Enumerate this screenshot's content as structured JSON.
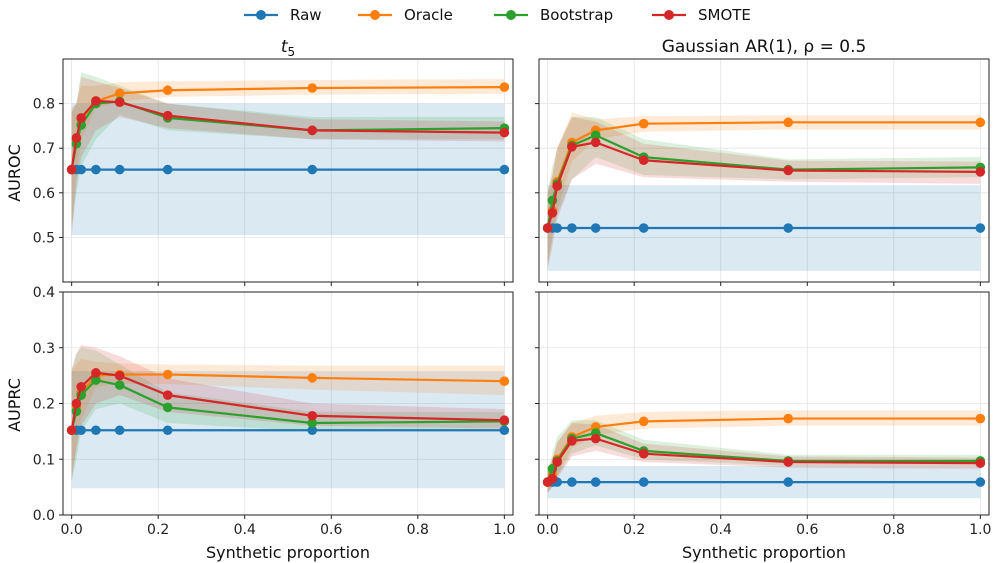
{
  "legend": [
    {
      "name": "Raw",
      "color": "#1f77b4"
    },
    {
      "name": "Oracle",
      "color": "#ff7f0e"
    },
    {
      "name": "Bootstrap",
      "color": "#2ca02c"
    },
    {
      "name": "SMOTE",
      "color": "#d62728"
    }
  ],
  "chart_data": [
    {
      "type": "line",
      "title": "t",
      "title_sub": "5",
      "xlabel": "",
      "ylabel": "AUROC",
      "xlim": [
        -0.02,
        1.02
      ],
      "ylim": [
        0.4,
        0.9
      ],
      "grid": true,
      "x": [
        0.0,
        0.011,
        0.022,
        0.056,
        0.111,
        0.222,
        0.556,
        1.0
      ],
      "xticks": [
        "0.0",
        "0.2",
        "0.4",
        "0.6",
        "0.8",
        "1.0"
      ],
      "yticks": [
        "0.5",
        "0.6",
        "0.7",
        "0.8"
      ],
      "series": [
        {
          "name": "Raw",
          "values": [
            0.652,
            0.652,
            0.652,
            0.652,
            0.652,
            0.652,
            0.652,
            0.652
          ],
          "lower": [
            0.505,
            0.505,
            0.505,
            0.505,
            0.505,
            0.505,
            0.505,
            0.505
          ],
          "upper": [
            0.8,
            0.8,
            0.8,
            0.8,
            0.8,
            0.8,
            0.8,
            0.8
          ]
        },
        {
          "name": "Oracle",
          "values": [
            0.652,
            0.72,
            0.765,
            0.805,
            0.823,
            0.83,
            0.835,
            0.837
          ],
          "lower": [
            0.52,
            0.64,
            0.72,
            0.79,
            0.805,
            0.815,
            0.82,
            0.822
          ],
          "upper": [
            0.78,
            0.8,
            0.84,
            0.84,
            0.848,
            0.85,
            0.853,
            0.855
          ]
        },
        {
          "name": "Bootstrap",
          "values": [
            0.652,
            0.71,
            0.752,
            0.8,
            0.805,
            0.768,
            0.74,
            0.745
          ],
          "lower": [
            0.52,
            0.6,
            0.66,
            0.72,
            0.775,
            0.74,
            0.72,
            0.72
          ],
          "upper": [
            0.78,
            0.8,
            0.87,
            0.86,
            0.84,
            0.8,
            0.77,
            0.77
          ]
        },
        {
          "name": "SMOTE",
          "values": [
            0.652,
            0.723,
            0.768,
            0.806,
            0.803,
            0.773,
            0.74,
            0.735
          ],
          "lower": [
            0.5,
            0.62,
            0.68,
            0.74,
            0.77,
            0.745,
            0.72,
            0.715
          ],
          "upper": [
            0.79,
            0.8,
            0.86,
            0.85,
            0.835,
            0.8,
            0.765,
            0.76
          ]
        }
      ]
    },
    {
      "type": "line",
      "title": "Gaussian AR(1), ρ = 0.5",
      "xlabel": "",
      "ylabel": "",
      "xlim": [
        -0.02,
        1.02
      ],
      "ylim": [
        0.4,
        0.9
      ],
      "grid": true,
      "x": [
        0.0,
        0.011,
        0.022,
        0.056,
        0.111,
        0.222,
        0.556,
        1.0
      ],
      "xticks": [
        "0.0",
        "0.2",
        "0.4",
        "0.6",
        "0.8",
        "1.0"
      ],
      "yticks": [
        "0.5",
        "0.6",
        "0.7",
        "0.8"
      ],
      "series": [
        {
          "name": "Raw",
          "values": [
            0.521,
            0.521,
            0.521,
            0.521,
            0.521,
            0.521,
            0.521,
            0.521
          ],
          "lower": [
            0.425,
            0.425,
            0.425,
            0.425,
            0.425,
            0.425,
            0.425,
            0.425
          ],
          "upper": [
            0.617,
            0.617,
            0.617,
            0.617,
            0.617,
            0.617,
            0.617,
            0.617
          ]
        },
        {
          "name": "Oracle",
          "values": [
            0.521,
            0.56,
            0.625,
            0.713,
            0.74,
            0.755,
            0.758,
            0.758
          ],
          "lower": [
            0.44,
            0.5,
            0.56,
            0.67,
            0.72,
            0.737,
            0.742,
            0.742
          ],
          "upper": [
            0.6,
            0.64,
            0.7,
            0.78,
            0.765,
            0.772,
            0.774,
            0.774
          ]
        },
        {
          "name": "Bootstrap",
          "values": [
            0.521,
            0.583,
            0.62,
            0.706,
            0.729,
            0.68,
            0.652,
            0.657
          ],
          "lower": [
            0.43,
            0.5,
            0.55,
            0.63,
            0.68,
            0.64,
            0.63,
            0.635
          ],
          "upper": [
            0.6,
            0.66,
            0.7,
            0.77,
            0.77,
            0.72,
            0.675,
            0.68
          ]
        },
        {
          "name": "SMOTE",
          "values": [
            0.521,
            0.555,
            0.615,
            0.703,
            0.713,
            0.673,
            0.65,
            0.647
          ],
          "lower": [
            0.43,
            0.48,
            0.54,
            0.63,
            0.665,
            0.635,
            0.625,
            0.62
          ],
          "upper": [
            0.6,
            0.64,
            0.7,
            0.77,
            0.76,
            0.71,
            0.672,
            0.67
          ]
        }
      ]
    },
    {
      "type": "line",
      "title": "",
      "xlabel": "Synthetic proportion",
      "ylabel": "AUPRC",
      "xlim": [
        -0.02,
        1.02
      ],
      "ylim": [
        0.0,
        0.4
      ],
      "grid": true,
      "x": [
        0.0,
        0.011,
        0.022,
        0.056,
        0.111,
        0.222,
        0.556,
        1.0
      ],
      "xticks": [
        "0.0",
        "0.2",
        "0.4",
        "0.6",
        "0.8",
        "1.0"
      ],
      "yticks": [
        "0.0",
        "0.1",
        "0.2",
        "0.3",
        "0.4"
      ],
      "series": [
        {
          "name": "Raw",
          "values": [
            0.152,
            0.152,
            0.152,
            0.152,
            0.152,
            0.152,
            0.152,
            0.152
          ],
          "lower": [
            0.048,
            0.048,
            0.048,
            0.048,
            0.048,
            0.048,
            0.048,
            0.048
          ],
          "upper": [
            0.258,
            0.258,
            0.258,
            0.258,
            0.258,
            0.258,
            0.258,
            0.258
          ]
        },
        {
          "name": "Oracle",
          "values": [
            0.152,
            0.195,
            0.22,
            0.25,
            0.252,
            0.252,
            0.246,
            0.24
          ],
          "lower": [
            0.07,
            0.12,
            0.17,
            0.23,
            0.235,
            0.235,
            0.225,
            0.215
          ],
          "upper": [
            0.26,
            0.27,
            0.28,
            0.275,
            0.272,
            0.27,
            0.268,
            0.268
          ]
        },
        {
          "name": "Bootstrap",
          "values": [
            0.152,
            0.186,
            0.215,
            0.242,
            0.233,
            0.193,
            0.165,
            0.168
          ],
          "lower": [
            0.06,
            0.1,
            0.15,
            0.19,
            0.2,
            0.165,
            0.15,
            0.155
          ],
          "upper": [
            0.26,
            0.29,
            0.3,
            0.295,
            0.27,
            0.22,
            0.185,
            0.185
          ]
        },
        {
          "name": "SMOTE",
          "values": [
            0.152,
            0.2,
            0.23,
            0.255,
            0.25,
            0.215,
            0.178,
            0.17
          ],
          "lower": [
            0.06,
            0.12,
            0.16,
            0.2,
            0.215,
            0.185,
            0.16,
            0.155
          ],
          "upper": [
            0.26,
            0.29,
            0.305,
            0.3,
            0.285,
            0.245,
            0.2,
            0.19
          ]
        }
      ]
    },
    {
      "type": "line",
      "title": "",
      "xlabel": "Synthetic proportion",
      "ylabel": "",
      "xlim": [
        -0.02,
        1.02
      ],
      "ylim": [
        0.0,
        0.4
      ],
      "grid": true,
      "x": [
        0.0,
        0.011,
        0.022,
        0.056,
        0.111,
        0.222,
        0.556,
        1.0
      ],
      "xticks": [
        "0.0",
        "0.2",
        "0.4",
        "0.6",
        "0.8",
        "1.0"
      ],
      "yticks": [
        "0.0",
        "0.1",
        "0.2",
        "0.3",
        "0.4"
      ],
      "series": [
        {
          "name": "Raw",
          "values": [
            0.059,
            0.059,
            0.059,
            0.059,
            0.059,
            0.059,
            0.059,
            0.059
          ],
          "lower": [
            0.03,
            0.03,
            0.03,
            0.03,
            0.03,
            0.03,
            0.03,
            0.03
          ],
          "upper": [
            0.088,
            0.088,
            0.088,
            0.088,
            0.088,
            0.088,
            0.088,
            0.088
          ]
        },
        {
          "name": "Oracle",
          "values": [
            0.059,
            0.072,
            0.1,
            0.14,
            0.158,
            0.168,
            0.173,
            0.173
          ],
          "lower": [
            0.04,
            0.05,
            0.07,
            0.12,
            0.143,
            0.155,
            0.16,
            0.16
          ],
          "upper": [
            0.08,
            0.1,
            0.13,
            0.165,
            0.178,
            0.185,
            0.188,
            0.188
          ]
        },
        {
          "name": "Bootstrap",
          "values": [
            0.059,
            0.083,
            0.097,
            0.137,
            0.147,
            0.115,
            0.097,
            0.097
          ],
          "lower": [
            0.04,
            0.055,
            0.07,
            0.11,
            0.125,
            0.1,
            0.088,
            0.088
          ],
          "upper": [
            0.08,
            0.11,
            0.14,
            0.17,
            0.17,
            0.135,
            0.108,
            0.108
          ]
        },
        {
          "name": "SMOTE",
          "values": [
            0.059,
            0.065,
            0.095,
            0.133,
            0.137,
            0.11,
            0.095,
            0.093
          ],
          "lower": [
            0.04,
            0.05,
            0.065,
            0.105,
            0.115,
            0.095,
            0.085,
            0.083
          ],
          "upper": [
            0.08,
            0.1,
            0.13,
            0.165,
            0.162,
            0.128,
            0.105,
            0.103
          ]
        }
      ]
    }
  ]
}
